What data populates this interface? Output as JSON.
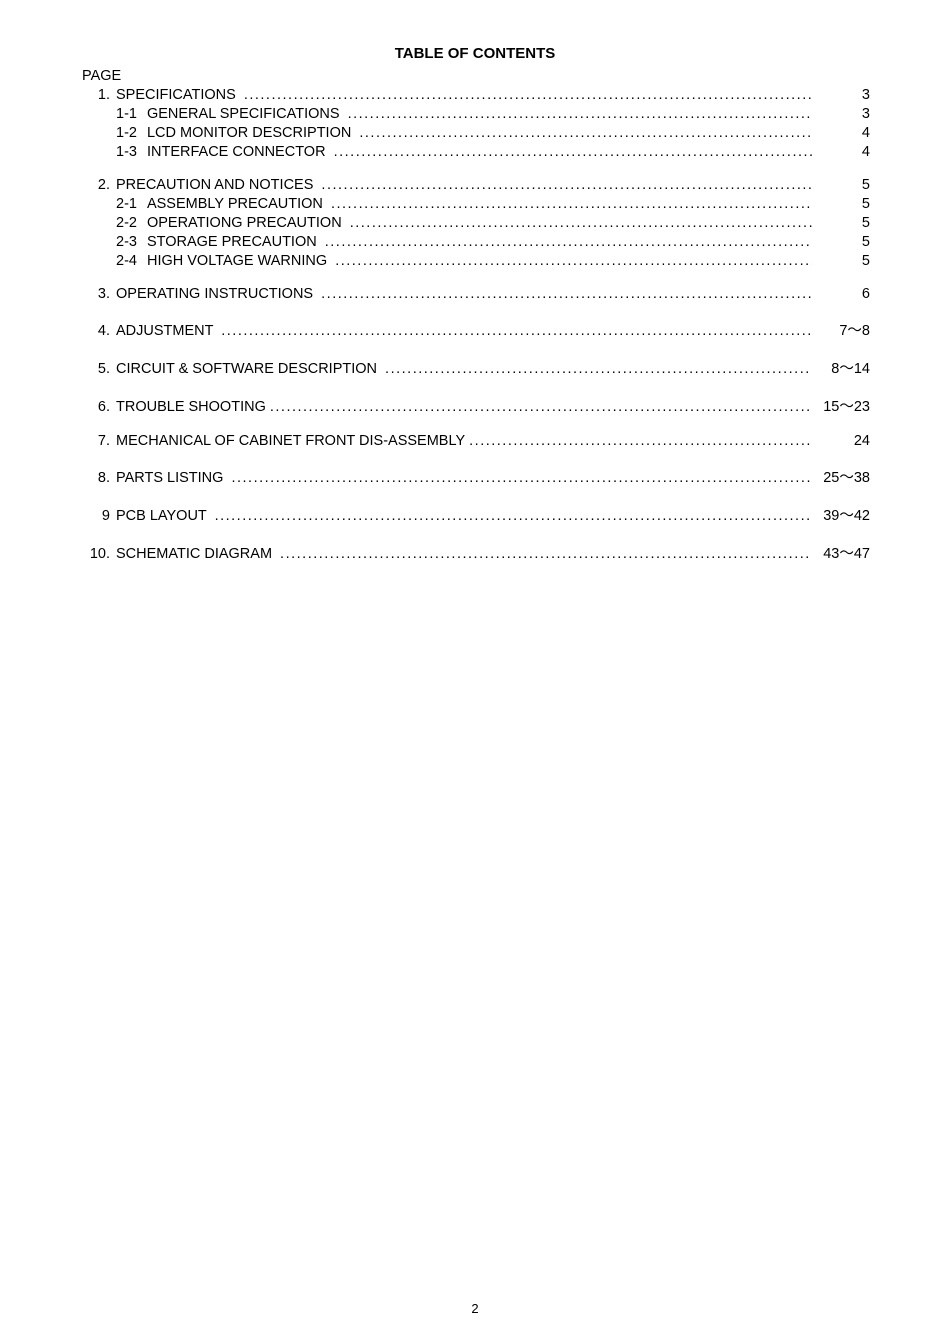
{
  "document": {
    "title": "TABLE OF CONTENTS",
    "page_header": "PAGE",
    "page_number": "2",
    "background_color": "#ffffff",
    "text_color": "#000000",
    "font_size_body": 14.5,
    "font_size_title": 15,
    "font_size_footer": 13,
    "leader_char": "."
  },
  "toc": [
    {
      "num": "1.",
      "label": "SPECIFICATIONS ",
      "page": "3",
      "subs": [
        {
          "subnum": "1-1",
          "label": "GENERAL SPECIFICATIONS ",
          "page": "3"
        },
        {
          "subnum": "1-2",
          "label": "LCD MONITOR DESCRIPTION ",
          "page": "4"
        },
        {
          "subnum": "1-3",
          "label": "INTERFACE CONNECTOR ",
          "page": "4"
        }
      ]
    },
    {
      "num": "2.",
      "label": "PRECAUTION AND NOTICES ",
      "page": "5",
      "subs": [
        {
          "subnum": "2-1",
          "label": "ASSEMBLY PRECAUTION ",
          "page": "5"
        },
        {
          "subnum": "2-2",
          "label": "OPERATIONG PRECAUTION ",
          "page": "5"
        },
        {
          "subnum": "2-3",
          "label": "STORAGE PRECAUTION ",
          "page": "5"
        },
        {
          "subnum": "2-4",
          "label": "HIGH VOLTAGE WARNING ",
          "page": "5"
        }
      ]
    },
    {
      "num": "3.",
      "label": "OPERATING INSTRUCTIONS ",
      "page": "6",
      "subs": []
    },
    {
      "num": "4.",
      "label": "ADJUSTMENT ",
      "page": "7～8",
      "subs": []
    },
    {
      "num": "5.",
      "label": "CIRCUIT & SOFTWARE DESCRIPTION ",
      "page": "8～14",
      "subs": []
    },
    {
      "num": "6.",
      "label": "TROUBLE SHOOTING",
      "page": "15～23",
      "subs": []
    },
    {
      "num": "7.",
      "label": "MECHANICAL OF CABINET FRONT DIS-ASSEMBLY",
      "page": "24",
      "subs": []
    },
    {
      "num": "8.",
      "label": "PARTS LISTING ",
      "page": "25～38",
      "subs": []
    },
    {
      "num": "9",
      "label": "PCB LAYOUT ",
      "page": "39～42",
      "subs": []
    },
    {
      "num": "10.",
      "label": "SCHEMATIC DIAGRAM ",
      "page": "43～47",
      "subs": []
    }
  ]
}
